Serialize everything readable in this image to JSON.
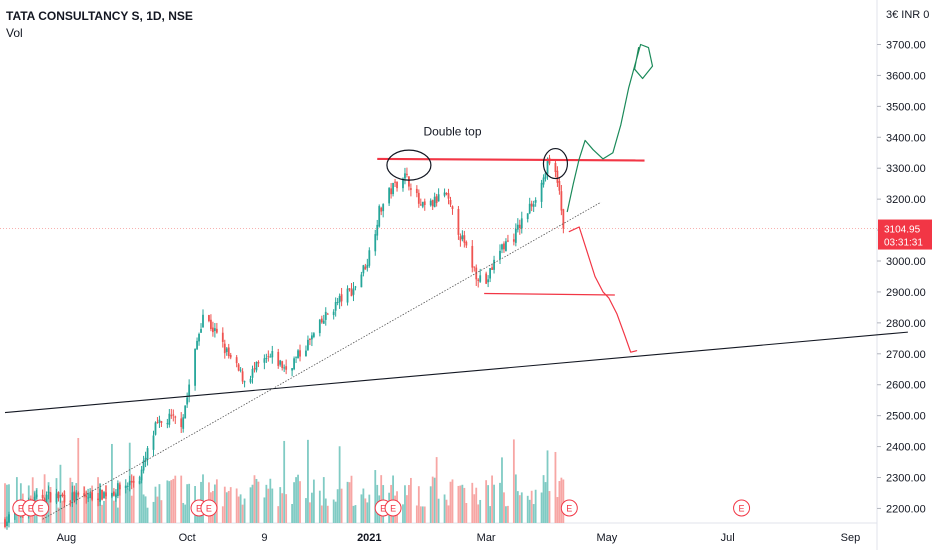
{
  "legend": {
    "symbol_line": "TATA CONSULTANCY S, 1D, NSE",
    "volume_label": "Vol"
  },
  "price_scale": {
    "currency_label": "3€ INR 0",
    "ticks": [
      2200,
      2300,
      2400,
      2500,
      2600,
      2700,
      2800,
      2900,
      3000,
      3100,
      3200,
      3300,
      3400,
      3500,
      3600,
      3700
    ],
    "tick_labels": [
      "2200.00",
      "2300.00",
      "2400.00",
      "2500.00",
      "2600.00",
      "2700.00",
      "2800.00",
      "2900.00",
      "3000.00",
      "3100.00",
      "3200.00",
      "3300.00",
      "3400.00",
      "3500.00",
      "3600.00",
      "3700.00"
    ],
    "last_price_label": "3104.95",
    "countdown_label": "03:31:31",
    "last_price": 3104.95
  },
  "time_axis": {
    "labels": [
      "Aug",
      "Oct",
      "9",
      "2021",
      "Mar",
      "May",
      "Jul",
      "Sep"
    ]
  },
  "annotations": {
    "double_top_label": "Double top",
    "earnings_marker_label": "E"
  },
  "colors": {
    "up": "#26a69a",
    "down": "#ef5350",
    "resistance": "#f23645",
    "trend": "#131722",
    "bull_path": "#1b8a5a",
    "bear_path": "#f23645",
    "badge": "#f23645"
  },
  "chart_data": {
    "type": "candlestick",
    "interval": "1D",
    "exchange": "NSE",
    "ylim": [
      2160,
      3800
    ],
    "x_range": [
      "2020-07-01",
      "2021-09-30"
    ],
    "series": [
      {
        "name": "Vol",
        "kind": "volume"
      }
    ],
    "anchor_path": [
      [
        "2020-07-01",
        2160
      ],
      [
        "2020-07-20",
        2240
      ],
      [
        "2020-08-10",
        2235
      ],
      [
        "2020-08-25",
        2255
      ],
      [
        "2020-09-07",
        2300
      ],
      [
        "2020-09-15",
        2460
      ],
      [
        "2020-09-22",
        2490
      ],
      [
        "2020-09-28",
        2480
      ],
      [
        "2020-10-01",
        2560
      ],
      [
        "2020-10-06",
        2740
      ],
      [
        "2020-10-09",
        2830
      ],
      [
        "2020-10-16",
        2760
      ],
      [
        "2020-10-23",
        2680
      ],
      [
        "2020-10-30",
        2615
      ],
      [
        "2020-11-06",
        2660
      ],
      [
        "2020-11-13",
        2690
      ],
      [
        "2020-11-20",
        2650
      ],
      [
        "2020-11-27",
        2700
      ],
      [
        "2020-12-04",
        2760
      ],
      [
        "2020-12-11",
        2830
      ],
      [
        "2020-12-18",
        2880
      ],
      [
        "2020-12-24",
        2910
      ],
      [
        "2020-12-31",
        3000
      ],
      [
        "2021-01-06",
        3160
      ],
      [
        "2021-01-12",
        3230
      ],
      [
        "2021-01-18",
        3280
      ],
      [
        "2021-01-22",
        3250
      ],
      [
        "2021-01-27",
        3170
      ],
      [
        "2021-02-01",
        3180
      ],
      [
        "2021-02-08",
        3220
      ],
      [
        "2021-02-12",
        3150
      ],
      [
        "2021-02-18",
        3050
      ],
      [
        "2021-02-24",
        2960
      ],
      [
        "2021-03-01",
        2930
      ],
      [
        "2021-03-08",
        3040
      ],
      [
        "2021-03-15",
        3080
      ],
      [
        "2021-03-22",
        3160
      ],
      [
        "2021-03-29",
        3250
      ],
      [
        "2021-04-01",
        3310
      ],
      [
        "2021-04-06",
        3270
      ],
      [
        "2021-04-09",
        3104.95
      ]
    ],
    "earnings_dates": [
      "2020-07-09",
      "2020-07-14",
      "2020-07-19",
      "2020-10-07",
      "2020-10-12",
      "2021-01-08",
      "2021-01-13",
      "2021-04-12",
      "2021-07-08"
    ],
    "lines": [
      {
        "name": "resistance",
        "from": [
          "2021-01-05",
          3330
        ],
        "to": [
          "2021-05-20",
          3325
        ]
      },
      {
        "name": "neckline",
        "from": [
          "2021-02-28",
          2895
        ],
        "to": [
          "2021-05-05",
          2890
        ]
      },
      {
        "name": "long-trend",
        "from": [
          "2020-07-01",
          2510
        ],
        "to": [
          "2021-09-30",
          2770
        ]
      },
      {
        "name": "rising-support",
        "from": [
          "2020-07-20",
          2165
        ],
        "to": [
          "2021-04-28",
          3190
        ]
      }
    ]
  }
}
